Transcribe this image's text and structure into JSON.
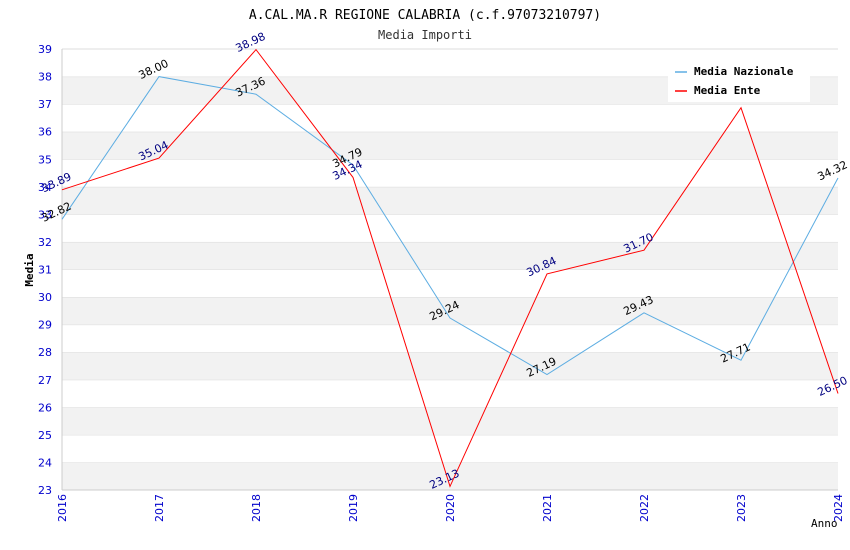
{
  "chart_data": {
    "type": "line",
    "title": "A.CAL.MA.R REGIONE CALABRIA (c.f.97073210797)",
    "subtitle": "Media Importi",
    "xlabel": "Anno",
    "ylabel": "Media",
    "x": [
      "2016",
      "2017",
      "2018",
      "2019",
      "2020",
      "2021",
      "2022",
      "2023",
      "2024"
    ],
    "ylim": [
      23,
      39
    ],
    "yticks": [
      "23",
      "24",
      "25",
      "26",
      "27",
      "28",
      "29",
      "30",
      "31",
      "32",
      "33",
      "34",
      "35",
      "36",
      "37",
      "38",
      "39"
    ],
    "grid": true,
    "legend_position": "top-right",
    "series": [
      {
        "name": "Media Nazionale",
        "color": "#5dade2",
        "label_color": "#000000",
        "values": [
          32.82,
          38.0,
          37.36,
          34.79,
          29.24,
          27.19,
          29.43,
          27.71,
          34.32
        ],
        "labels": [
          "32.82",
          "38.00",
          "37.36",
          "34.79",
          "29.24",
          "27.19",
          "29.43",
          "27.71",
          "34.32"
        ]
      },
      {
        "name": "Media Ente",
        "color": "#ff0000",
        "label_color": "#000080",
        "values": [
          33.89,
          35.04,
          38.98,
          34.34,
          23.13,
          30.84,
          31.7,
          36.87,
          26.5
        ],
        "labels": [
          "33.89",
          "35.04",
          "38.98",
          "34.34",
          "23.13",
          "30.84",
          "31.70",
          "",
          "26.50"
        ]
      }
    ]
  }
}
